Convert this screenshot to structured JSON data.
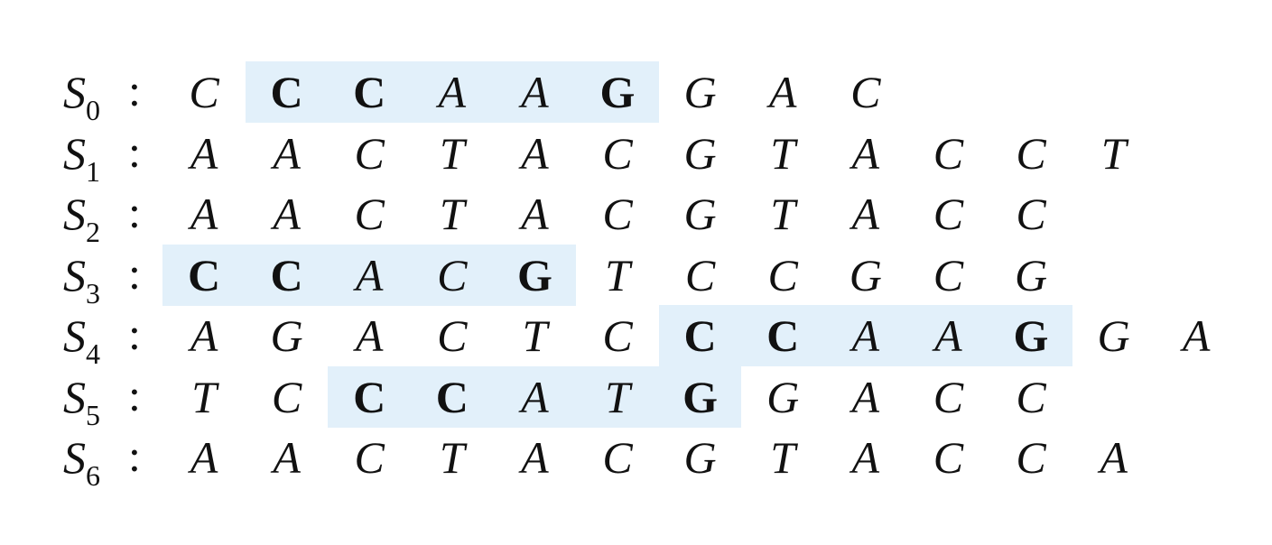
{
  "rows": [
    {
      "name": "S",
      "sub": "0",
      "colon": ":",
      "seq": [
        "C",
        "C",
        "C",
        "A",
        "A",
        "G",
        "G",
        "A",
        "C"
      ],
      "highlight": [
        1,
        5
      ]
    },
    {
      "name": "S",
      "sub": "1",
      "colon": ":",
      "seq": [
        "A",
        "A",
        "C",
        "T",
        "A",
        "C",
        "G",
        "T",
        "A",
        "C",
        "C",
        "T"
      ],
      "highlight": null
    },
    {
      "name": "S",
      "sub": "2",
      "colon": ":",
      "seq": [
        "A",
        "A",
        "C",
        "T",
        "A",
        "C",
        "G",
        "T",
        "A",
        "C",
        "C"
      ],
      "highlight": null
    },
    {
      "name": "S",
      "sub": "3",
      "colon": ":",
      "seq": [
        "C",
        "C",
        "A",
        "C",
        "G",
        "T",
        "C",
        "C",
        "G",
        "C",
        "G"
      ],
      "highlight": [
        0,
        4
      ]
    },
    {
      "name": "S",
      "sub": "4",
      "colon": ":",
      "seq": [
        "A",
        "G",
        "A",
        "C",
        "T",
        "C",
        "C",
        "C",
        "A",
        "A",
        "G",
        "G",
        "A"
      ],
      "highlight": [
        6,
        10
      ]
    },
    {
      "name": "S",
      "sub": "5",
      "colon": ":",
      "seq": [
        "T",
        "C",
        "C",
        "C",
        "A",
        "T",
        "G",
        "G",
        "A",
        "C",
        "C"
      ],
      "highlight": [
        2,
        6
      ]
    },
    {
      "name": "S",
      "sub": "6",
      "colon": ":",
      "seq": [
        "A",
        "A",
        "C",
        "T",
        "A",
        "C",
        "G",
        "T",
        "A",
        "C",
        "C",
        "A"
      ],
      "highlight": null
    }
  ],
  "colors": {
    "highlight": "#e2f0fa",
    "text": "#111111"
  }
}
